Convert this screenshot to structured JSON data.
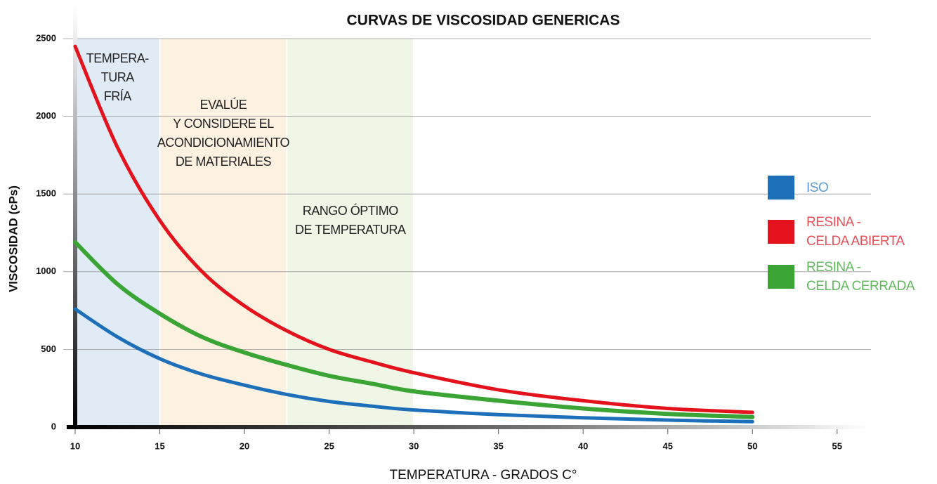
{
  "chart_data": {
    "type": "line",
    "title": "CURVAS DE VISCOSIDAD GENERICAS",
    "xlabel": "TEMPERATURA - GRADOS C°",
    "ylabel": "VISCOSIDAD (cPs)",
    "xlim": [
      10,
      57
    ],
    "ylim": [
      0,
      2500
    ],
    "xticks": [
      10,
      15,
      20,
      25,
      30,
      35,
      40,
      45,
      50,
      55
    ],
    "yticks": [
      0,
      500,
      1000,
      1500,
      2000,
      2500
    ],
    "grid": true,
    "zones": [
      {
        "from": 10,
        "to": 15,
        "color": "#dce7f4",
        "label": "TEMPERA-\nTURA\nFRÍA"
      },
      {
        "from": 15,
        "to": 22.5,
        "color": "#fdeedd",
        "label": "EVALÚE\nY CONSIDERE EL\nACONDICIONAMIENTO\nDE MATERIALES"
      },
      {
        "from": 22.5,
        "to": 30,
        "color": "#edf4e2",
        "label": "RANGO ÓPTIMO\nDE TEMPERATURA"
      }
    ],
    "x": [
      10,
      12.5,
      15,
      17.5,
      20,
      22.5,
      25,
      27.5,
      30,
      35,
      40,
      45,
      50
    ],
    "series": [
      {
        "name": "ISO",
        "color": "#1c6fb8",
        "label_color": "#5a9bd3",
        "values": [
          760,
          580,
          440,
          340,
          270,
          210,
          165,
          135,
          110,
          80,
          60,
          45,
          35
        ]
      },
      {
        "name": "RESINA -\nCELDA ABIERTA",
        "color": "#e3121c",
        "label_color": "#e8505a",
        "values": [
          2450,
          1800,
          1330,
          1000,
          780,
          620,
          500,
          420,
          350,
          240,
          170,
          120,
          95
        ]
      },
      {
        "name": "RESINA -\nCELDA CERRADA",
        "color": "#3aa535",
        "label_color": "#62b85c",
        "values": [
          1190,
          920,
          730,
          580,
          480,
          400,
          330,
          280,
          230,
          170,
          120,
          85,
          65
        ]
      }
    ]
  }
}
